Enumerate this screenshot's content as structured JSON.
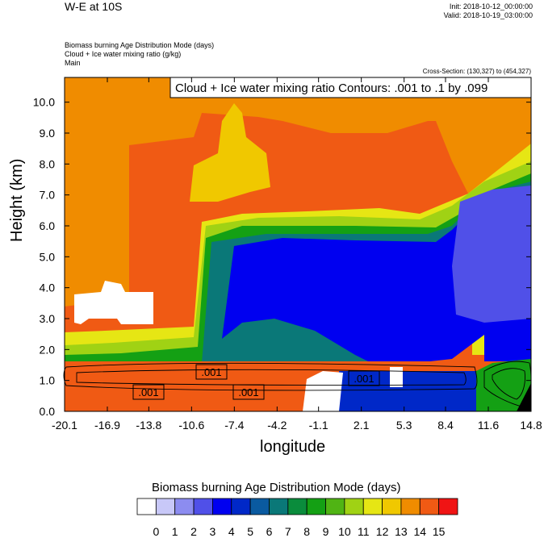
{
  "header": {
    "title": "W-E at 10S",
    "init": "Init: 2018-10-12_00:00:00",
    "valid": "Valid: 2018-10-19_03:00:00"
  },
  "labels": {
    "line1": "Biomass burning Age Distribution Mode   (days)",
    "line2": "Cloud + Ice water mixing ratio   (g/kg)",
    "line3": "Main",
    "cross_section": "Cross-Section: (130,327) to (454,327)"
  },
  "chart_data": {
    "type": "heatmap",
    "title": "Cloud + Ice water mixing ratio Contours: .001 to .1 by .099",
    "xlabel": "longitude",
    "ylabel": "Height (km)",
    "xlim": [
      -20.1,
      14.8
    ],
    "ylim": [
      0,
      10.8
    ],
    "x_ticks": [
      "-20.1",
      "-16.9",
      "-13.8",
      "-10.6",
      "-7.4",
      "-4.2",
      "-1.1",
      "2.1",
      "5.3",
      "8.4",
      "11.6",
      "14.8"
    ],
    "y_ticks": [
      "0.0",
      "1.0",
      "2.0",
      "3.0",
      "4.0",
      "5.0",
      "6.0",
      "7.0",
      "8.0",
      "9.0",
      "10.0"
    ],
    "contour_labels": [
      ".001",
      ".001",
      ".001",
      ".001"
    ],
    "colorbar": {
      "title": "Biomass burning Age Distribution Mode  (days)",
      "ticks": [
        "0",
        "1",
        "2",
        "3",
        "4",
        "5",
        "6",
        "7",
        "8",
        "9",
        "10",
        "11",
        "12",
        "13",
        "14",
        "15"
      ],
      "colors": [
        "#ffffff",
        "#c8c8f8",
        "#8c8cf0",
        "#5050e8",
        "#0000f0",
        "#0028c8",
        "#0a5aa0",
        "#0a7878",
        "#0a8c3c",
        "#14a014",
        "#50b414",
        "#a0d214",
        "#e6e614",
        "#f0c800",
        "#f08c00",
        "#f05a14",
        "#f01414"
      ]
    }
  }
}
